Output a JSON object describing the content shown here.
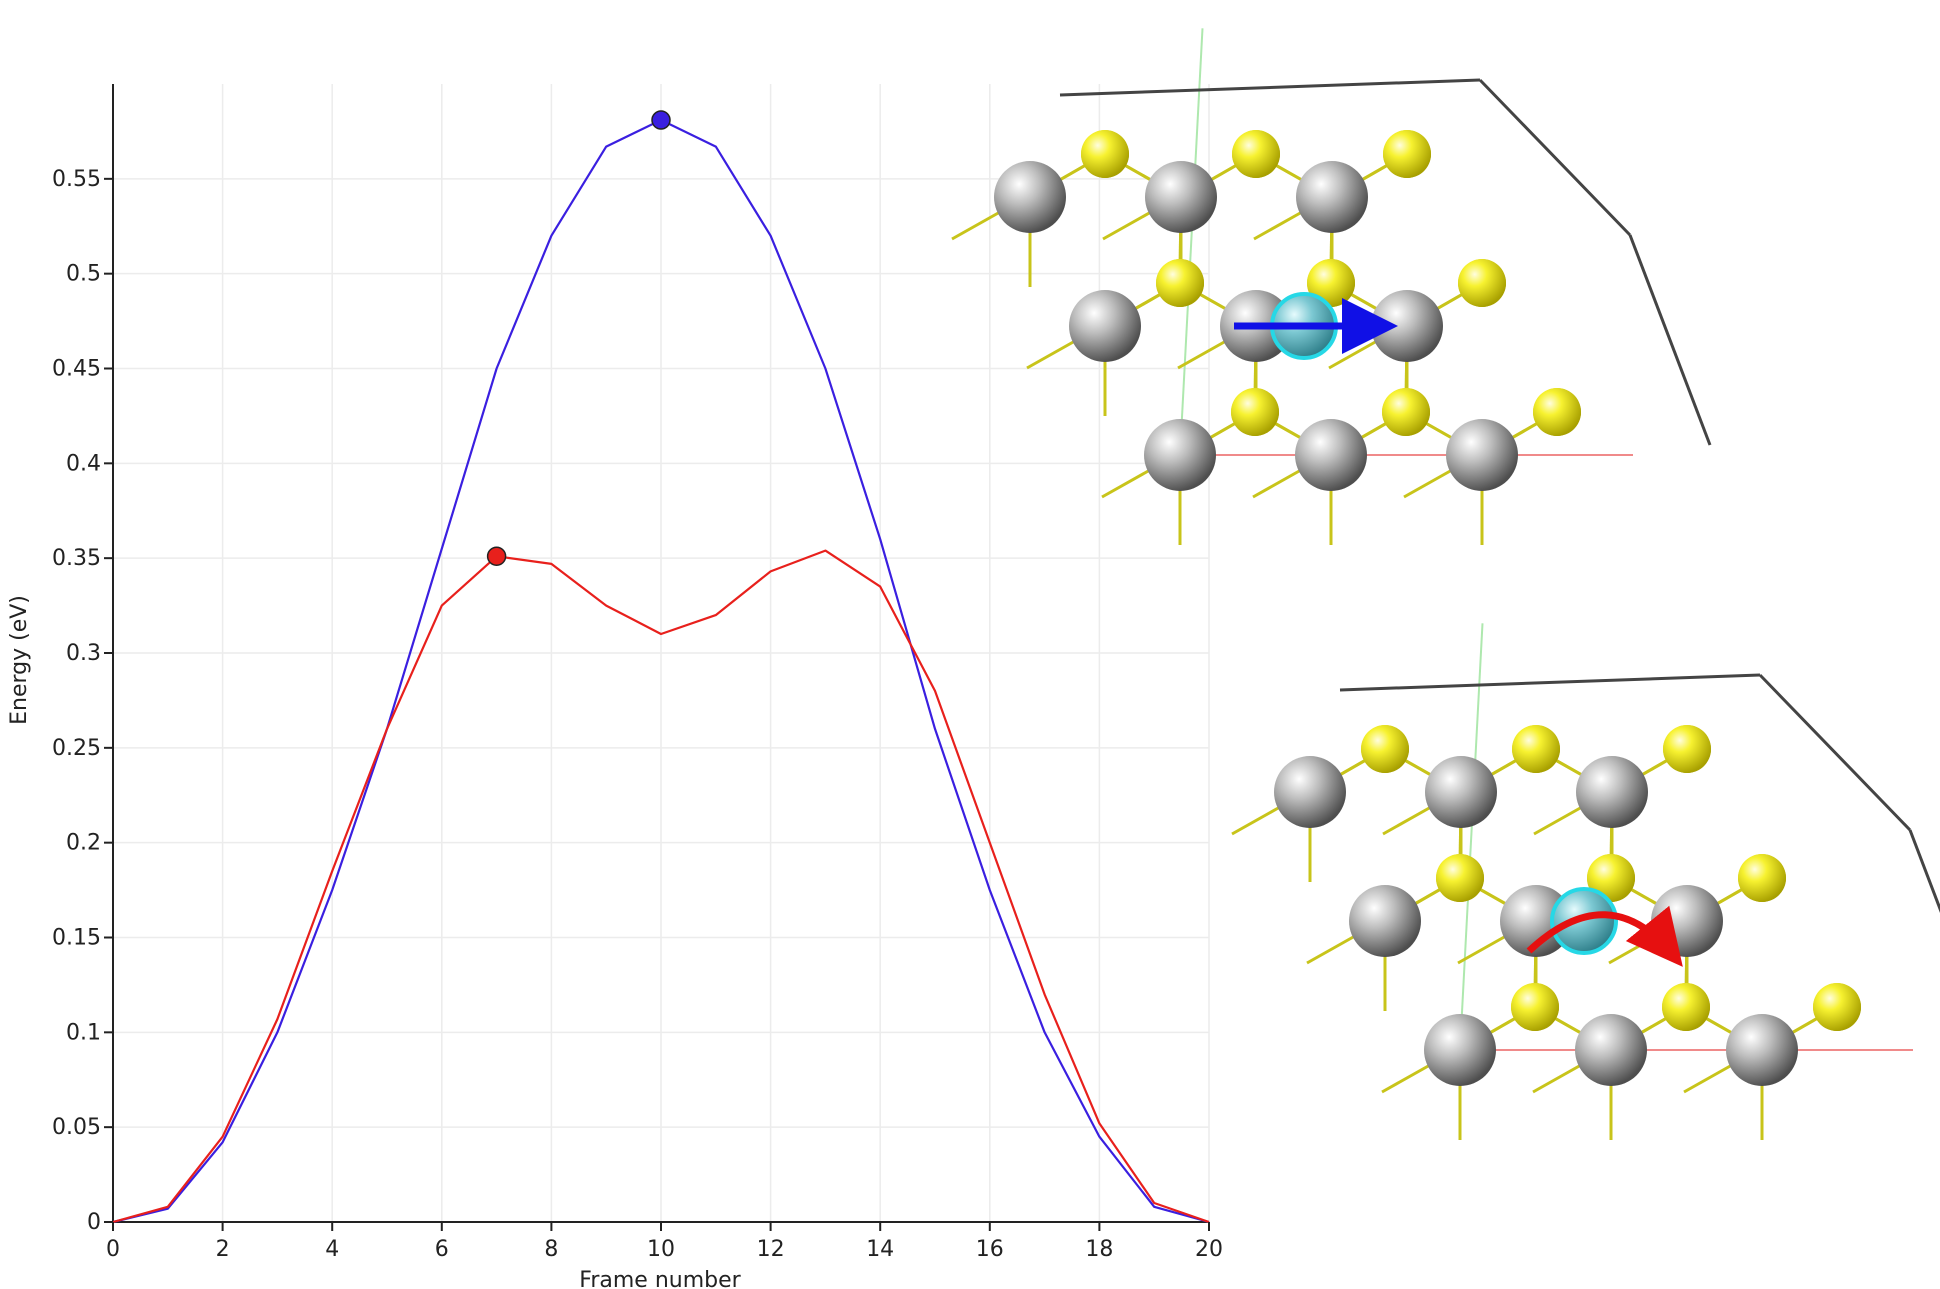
{
  "chart_data": {
    "type": "line",
    "xlabel": "Frame number",
    "ylabel": "Energy (eV)",
    "xlim": [
      0,
      20
    ],
    "ylim": [
      0,
      0.6
    ],
    "grid": true,
    "x_ticks": [
      {
        "value": 0,
        "label": "0"
      },
      {
        "value": 2,
        "label": "2"
      },
      {
        "value": 4,
        "label": "4"
      },
      {
        "value": 6,
        "label": "6"
      },
      {
        "value": 8,
        "label": "8"
      },
      {
        "value": 10,
        "label": "10"
      },
      {
        "value": 12,
        "label": "12"
      },
      {
        "value": 14,
        "label": "14"
      },
      {
        "value": 16,
        "label": "16"
      },
      {
        "value": 18,
        "label": "18"
      },
      {
        "value": 20,
        "label": "20"
      }
    ],
    "y_ticks": [
      {
        "value": 0,
        "label": "0"
      },
      {
        "value": 0.05,
        "label": "0.05"
      },
      {
        "value": 0.1,
        "label": "0.1"
      },
      {
        "value": 0.15,
        "label": "0.15"
      },
      {
        "value": 0.2,
        "label": "0.2"
      },
      {
        "value": 0.25,
        "label": "0.25"
      },
      {
        "value": 0.3,
        "label": "0.3"
      },
      {
        "value": 0.35,
        "label": "0.35"
      },
      {
        "value": 0.4,
        "label": "0.4"
      },
      {
        "value": 0.45,
        "label": "0.45"
      },
      {
        "value": 0.5,
        "label": "0.5"
      },
      {
        "value": 0.55,
        "label": "0.55"
      }
    ],
    "x": [
      0,
      1,
      2,
      3,
      4,
      5,
      6,
      7,
      8,
      9,
      10,
      11,
      12,
      13,
      14,
      15,
      16,
      17,
      18,
      19,
      20
    ],
    "series": [
      {
        "color": "#3a1fe0",
        "values": [
          0,
          0.007,
          0.042,
          0.1,
          0.175,
          0.26,
          0.355,
          0.45,
          0.52,
          0.567,
          0.581,
          0.567,
          0.52,
          0.45,
          0.36,
          0.26,
          0.175,
          0.1,
          0.045,
          0.008,
          0
        ],
        "marker": {
          "x": 10,
          "y": 0.581
        }
      },
      {
        "color": "#e8201c",
        "values": [
          0,
          0.008,
          0.045,
          0.107,
          0.185,
          0.26,
          0.325,
          0.351,
          0.347,
          0.325,
          0.31,
          0.32,
          0.343,
          0.354,
          0.335,
          0.28,
          0.2,
          0.12,
          0.052,
          0.01,
          0
        ],
        "marker": {
          "x": 7,
          "y": 0.351
        }
      }
    ]
  },
  "insets": {
    "atom_colors": {
      "sulfur": "#f2ee1a",
      "metal": "#a9a9a9",
      "migrating": "#7cc8d2",
      "highlight": "#26d8e6"
    },
    "top": {
      "arrow": "straight-arrow",
      "arrow_color": "#1010e6"
    },
    "bottom": {
      "arrow": "curved-arrow",
      "arrow_color": "#e61010"
    }
  }
}
